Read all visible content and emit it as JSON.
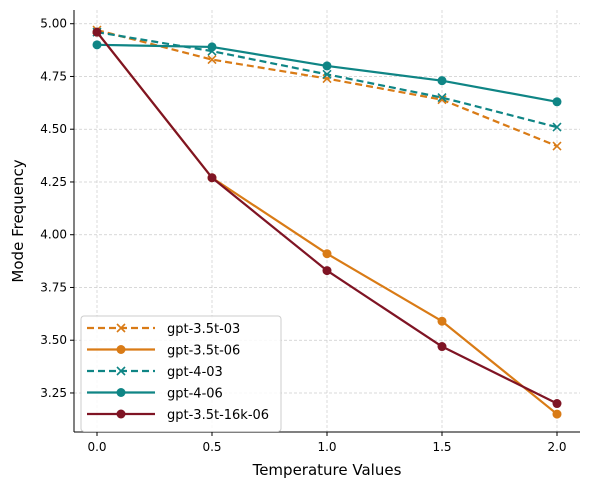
{
  "chart_data": {
    "type": "line",
    "title": "",
    "xlabel": "Temperature Values",
    "ylabel": "Mode Frequency",
    "x": [
      0.0,
      0.5,
      1.0,
      1.5,
      2.0
    ],
    "xticks": [
      "0.0",
      "0.5",
      "1.0",
      "1.5",
      "2.0"
    ],
    "xlim": [
      -0.1,
      2.1
    ],
    "yticks": [
      "3.25",
      "3.50",
      "3.75",
      "4.00",
      "4.25",
      "4.50",
      "4.75",
      "5.00"
    ],
    "ylim": [
      3.065,
      5.065
    ],
    "grid": true,
    "legend_position": "lower-left",
    "series": [
      {
        "name": "gpt-3.5t-03",
        "color": "#D97B16",
        "dashed": true,
        "marker": "x",
        "values": [
          4.97,
          4.83,
          4.74,
          4.64,
          4.42
        ]
      },
      {
        "name": "gpt-3.5t-06",
        "color": "#D97B16",
        "dashed": false,
        "marker": "o",
        "values": [
          4.96,
          4.27,
          3.91,
          3.59,
          3.15
        ]
      },
      {
        "name": "gpt-4-03",
        "color": "#0F8585",
        "dashed": true,
        "marker": "x",
        "values": [
          4.96,
          4.87,
          4.76,
          4.65,
          4.51
        ]
      },
      {
        "name": "gpt-4-06",
        "color": "#0F8585",
        "dashed": false,
        "marker": "o",
        "values": [
          4.9,
          4.89,
          4.8,
          4.73,
          4.63
        ]
      },
      {
        "name": "gpt-3.5t-16k-06",
        "color": "#7F1424",
        "dashed": false,
        "marker": "o",
        "values": [
          4.96,
          4.27,
          3.83,
          3.47,
          3.2
        ]
      }
    ]
  }
}
